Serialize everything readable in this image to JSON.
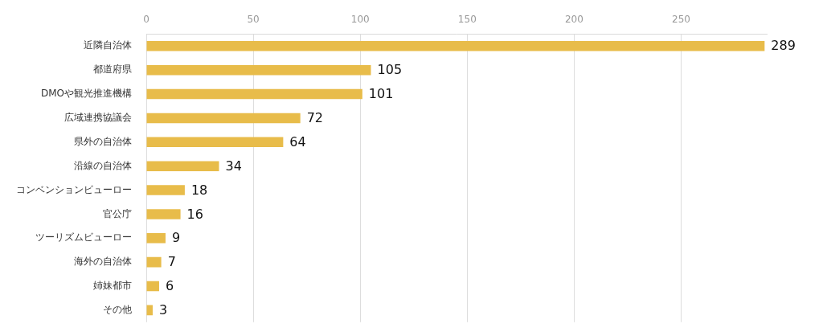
{
  "chart_data": {
    "type": "bar",
    "orientation": "horizontal",
    "categories": [
      "近隣自治体",
      "都道府県",
      "DMOや観光推進機構",
      "広域連携協議会",
      "県外の自治体",
      "沿線の自治体",
      "コンベンションビューロー",
      "官公庁",
      "ツーリズムビューロー",
      "海外の自治体",
      "姉妹都市",
      "その他"
    ],
    "values": [
      289,
      105,
      101,
      72,
      64,
      34,
      18,
      16,
      9,
      7,
      6,
      3
    ],
    "color": "#e8bc4a",
    "xlim": [
      0,
      290
    ],
    "xticks": [
      0,
      50,
      100,
      150,
      200,
      250
    ],
    "grid": true,
    "data_labels": true
  }
}
